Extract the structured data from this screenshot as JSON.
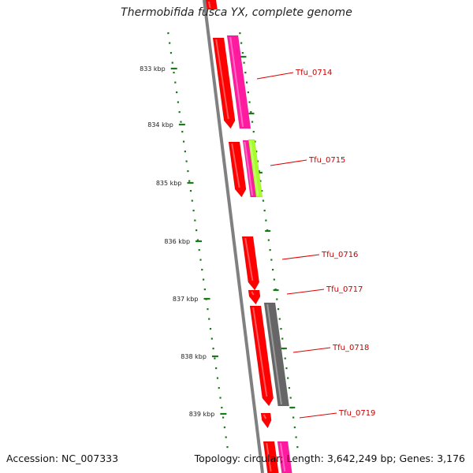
{
  "title": "Thermobifida fusca YX, complete genome",
  "accession_text": "Accession: NC_007333",
  "topology_text": "Topology: circular; Length: 3,642,249 bp; Genes: 3,176",
  "colors": {
    "backbone": "#808080",
    "tick": "#1a7a1a",
    "gene_red": "#ff0000",
    "gene_magenta": "#ff1aa0",
    "gene_lime": "#a6ff2a",
    "gene_gray": "#666666",
    "label_red": "#dd0000"
  },
  "ticks": [
    {
      "label": "833 kbp"
    },
    {
      "label": "834 kbp"
    },
    {
      "label": "835 kbp"
    },
    {
      "label": "836 kbp"
    },
    {
      "label": "837 kbp"
    },
    {
      "label": "838 kbp"
    },
    {
      "label": "839 kbp"
    }
  ],
  "gene_labels": [
    {
      "label": "Tfu_0714"
    },
    {
      "label": "Tfu_0715"
    },
    {
      "label": "Tfu_0716"
    },
    {
      "label": "Tfu_0717"
    },
    {
      "label": "Tfu_0718"
    },
    {
      "label": "Tfu_0719"
    }
  ]
}
